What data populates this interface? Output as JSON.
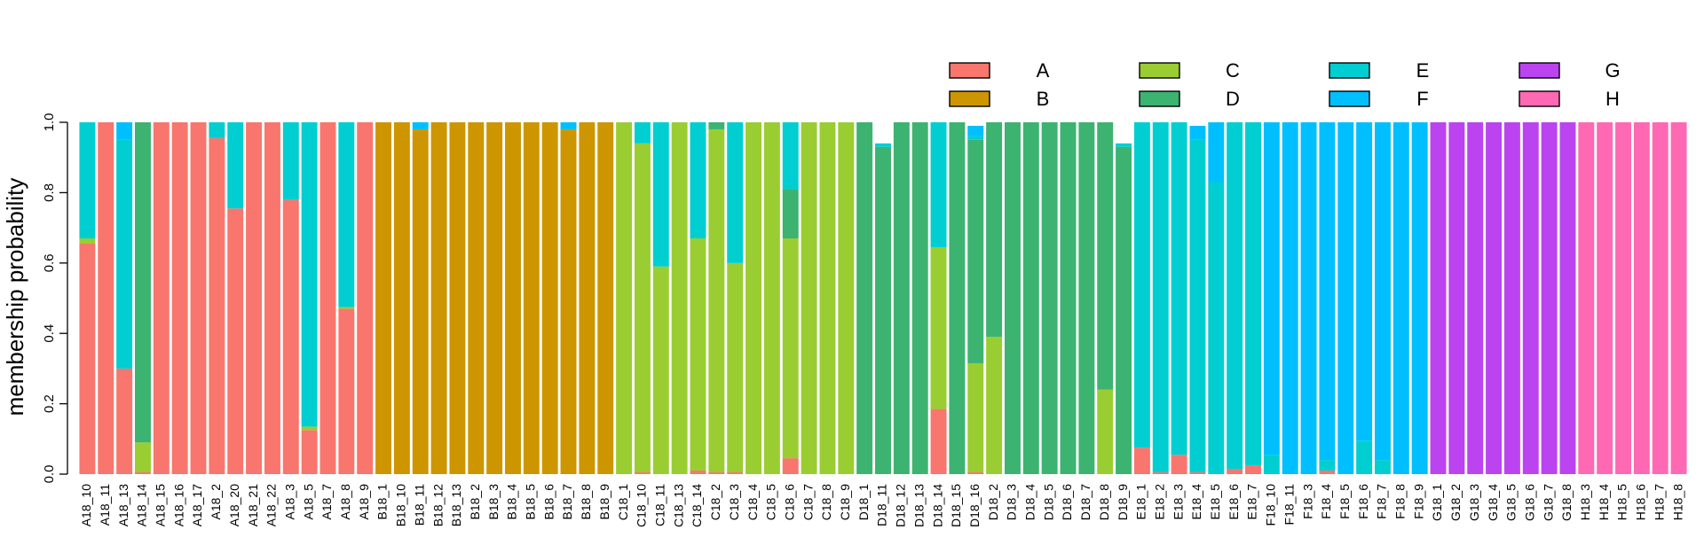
{
  "chart_data": {
    "type": "bar",
    "stacked": true,
    "title": "",
    "xlabel": "",
    "ylabel": "membership probability",
    "ylim": [
      0,
      1
    ],
    "yticks": [
      "0.0",
      "0.2",
      "0.4",
      "0.6",
      "0.8",
      "1.0"
    ],
    "yticks_values": [
      0,
      0.2,
      0.4,
      0.6,
      0.8,
      1.0
    ],
    "legend": {
      "placement": "top-right",
      "entries": [
        {
          "label": "A",
          "color": "#F8766D"
        },
        {
          "label": "B",
          "color": "#CD9600"
        },
        {
          "label": "C",
          "color": "#9ACD32"
        },
        {
          "label": "D",
          "color": "#3CB371"
        },
        {
          "label": "E",
          "color": "#00CED1"
        },
        {
          "label": "F",
          "color": "#00BFFF"
        },
        {
          "label": "G",
          "color": "#BB44F0"
        },
        {
          "label": "H",
          "color": "#FF69B4"
        }
      ]
    },
    "series_names": [
      "A",
      "B",
      "C",
      "D",
      "E",
      "F",
      "G",
      "H"
    ],
    "categories": [
      "A18_10",
      "A18_11",
      "A18_13",
      "A18_14",
      "A18_15",
      "A18_16",
      "A18_17",
      "A18_2",
      "A18_20",
      "A18_21",
      "A18_22",
      "A18_3",
      "A18_5",
      "A18_7",
      "A18_8",
      "A18_9",
      "B18_1",
      "B18_10",
      "B18_11",
      "B18_12",
      "B18_13",
      "B18_2",
      "B18_3",
      "B18_4",
      "B18_5",
      "B18_6",
      "B18_7",
      "B18_8",
      "B18_9",
      "C18_1",
      "C18_10",
      "C18_11",
      "C18_13",
      "C18_14",
      "C18_2",
      "C18_3",
      "C18_4",
      "C18_5",
      "C18_6",
      "C18_7",
      "C18_8",
      "C18_9",
      "D18_1",
      "D18_11",
      "D18_12",
      "D18_13",
      "D18_14",
      "D18_15",
      "D18_16",
      "D18_2",
      "D18_3",
      "D18_4",
      "D18_5",
      "D18_6",
      "D18_7",
      "D18_8",
      "D18_9",
      "E18_1",
      "E18_2",
      "E18_3",
      "E18_4",
      "E18_5",
      "E18_6",
      "E18_7",
      "F18_10",
      "F18_11",
      "F18_3",
      "F18_4",
      "F18_5",
      "F18_6",
      "F18_7",
      "F18_8",
      "F18_9",
      "G18_1",
      "G18_2",
      "G18_3",
      "G18_4",
      "G18_5",
      "G18_6",
      "G18_7",
      "G18_8",
      "H18_3",
      "H18_4",
      "H18_5",
      "H18_6",
      "H18_7",
      "H18_8"
    ],
    "bars": [
      [
        0.655,
        0,
        0.015,
        0,
        0.33,
        0,
        0,
        0
      ],
      [
        1,
        0,
        0,
        0,
        0,
        0,
        0,
        0
      ],
      [
        0.3,
        0,
        0,
        0,
        0.65,
        0.05,
        0,
        0
      ],
      [
        0.005,
        0,
        0.085,
        0.91,
        0,
        0,
        0,
        0
      ],
      [
        1,
        0,
        0,
        0,
        0,
        0,
        0,
        0
      ],
      [
        1,
        0,
        0,
        0,
        0,
        0,
        0,
        0
      ],
      [
        1,
        0,
        0,
        0,
        0,
        0,
        0,
        0
      ],
      [
        0.955,
        0,
        0,
        0,
        0.045,
        0,
        0,
        0
      ],
      [
        0.755,
        0,
        0,
        0,
        0.245,
        0,
        0,
        0
      ],
      [
        1,
        0,
        0,
        0,
        0,
        0,
        0,
        0
      ],
      [
        1,
        0,
        0,
        0,
        0,
        0,
        0,
        0
      ],
      [
        0.78,
        0,
        0,
        0,
        0.22,
        0,
        0,
        0
      ],
      [
        0.125,
        0,
        0.01,
        0,
        0.865,
        0,
        0,
        0
      ],
      [
        1,
        0,
        0,
        0,
        0,
        0,
        0,
        0
      ],
      [
        0.47,
        0,
        0.005,
        0,
        0.525,
        0,
        0,
        0
      ],
      [
        1,
        0,
        0,
        0,
        0,
        0,
        0,
        0
      ],
      [
        0,
        1,
        0,
        0,
        0,
        0,
        0,
        0
      ],
      [
        0,
        1,
        0,
        0,
        0,
        0,
        0,
        0
      ],
      [
        0,
        0.98,
        0,
        0,
        0,
        0.02,
        0,
        0
      ],
      [
        0,
        1,
        0,
        0,
        0,
        0,
        0,
        0
      ],
      [
        0,
        1,
        0,
        0,
        0,
        0,
        0,
        0
      ],
      [
        0,
        1,
        0,
        0,
        0,
        0,
        0,
        0
      ],
      [
        0,
        1,
        0,
        0,
        0,
        0,
        0,
        0
      ],
      [
        0,
        1,
        0,
        0,
        0,
        0,
        0,
        0
      ],
      [
        0,
        1,
        0,
        0,
        0,
        0,
        0,
        0
      ],
      [
        0,
        1,
        0,
        0,
        0,
        0,
        0,
        0
      ],
      [
        0,
        0.98,
        0,
        0,
        0,
        0.02,
        0,
        0
      ],
      [
        0,
        1,
        0,
        0,
        0,
        0,
        0,
        0
      ],
      [
        0,
        1,
        0,
        0,
        0,
        0,
        0,
        0
      ],
      [
        0,
        0,
        1,
        0,
        0,
        0,
        0,
        0
      ],
      [
        0.005,
        0,
        0.935,
        0,
        0.06,
        0,
        0,
        0
      ],
      [
        0,
        0,
        0.59,
        0,
        0.41,
        0,
        0,
        0
      ],
      [
        0,
        0,
        1,
        0,
        0,
        0,
        0,
        0
      ],
      [
        0.01,
        0,
        0.66,
        0,
        0.33,
        0,
        0,
        0
      ],
      [
        0.005,
        0,
        0.975,
        0.02,
        0,
        0,
        0,
        0
      ],
      [
        0.005,
        0,
        0.595,
        0,
        0.4,
        0,
        0,
        0
      ],
      [
        0,
        0,
        1,
        0,
        0,
        0,
        0,
        0
      ],
      [
        0,
        0,
        1,
        0,
        0,
        0,
        0,
        0
      ],
      [
        0.045,
        0,
        0.625,
        0.14,
        0.19,
        0,
        0,
        0
      ],
      [
        0,
        0,
        1,
        0,
        0,
        0,
        0,
        0
      ],
      [
        0,
        0,
        1,
        0,
        0,
        0,
        0,
        0
      ],
      [
        0,
        0,
        1,
        0,
        0,
        0,
        0,
        0
      ],
      [
        0,
        0,
        0,
        1,
        0,
        0,
        0,
        0
      ],
      [
        0,
        0,
        0,
        0.93,
        0.01,
        0,
        0,
        0
      ],
      [
        0,
        0,
        0,
        1,
        0,
        0,
        0,
        0
      ],
      [
        0,
        0,
        0,
        1,
        0,
        0,
        0,
        0
      ],
      [
        0.185,
        0,
        0.46,
        0,
        0.355,
        0,
        0,
        0
      ],
      [
        0,
        0,
        0,
        1,
        0,
        0,
        0,
        0
      ],
      [
        0.005,
        0,
        0.31,
        0.635,
        0.01,
        0.03,
        0,
        0
      ],
      [
        0,
        0,
        0.39,
        0.61,
        0,
        0,
        0,
        0
      ],
      [
        0,
        0,
        0,
        1,
        0,
        0,
        0,
        0
      ],
      [
        0,
        0,
        0,
        1,
        0,
        0,
        0,
        0
      ],
      [
        0,
        0,
        0,
        1,
        0,
        0,
        0,
        0
      ],
      [
        0,
        0,
        0,
        1,
        0,
        0,
        0,
        0
      ],
      [
        0,
        0,
        0,
        1,
        0,
        0,
        0,
        0
      ],
      [
        0,
        0,
        0.24,
        0.76,
        0,
        0,
        0,
        0
      ],
      [
        0,
        0,
        0,
        0.93,
        0.01,
        0,
        0,
        0
      ],
      [
        0.075,
        0,
        0,
        0,
        0.925,
        0,
        0,
        0
      ],
      [
        0.005,
        0,
        0,
        0,
        0.995,
        0,
        0,
        0
      ],
      [
        0.055,
        0,
        0,
        0,
        0.945,
        0,
        0,
        0
      ],
      [
        0.005,
        0,
        0,
        0,
        0.945,
        0.04,
        0,
        0
      ],
      [
        0,
        0,
        0,
        0,
        0.83,
        0.17,
        0,
        0
      ],
      [
        0.015,
        0,
        0,
        0,
        0.985,
        0,
        0,
        0
      ],
      [
        0.025,
        0,
        0,
        0,
        0.975,
        0,
        0,
        0
      ],
      [
        0,
        0,
        0,
        0,
        0.055,
        0.945,
        0,
        0
      ],
      [
        0,
        0,
        0,
        0,
        0,
        1,
        0,
        0
      ],
      [
        0,
        0,
        0,
        0,
        0,
        1,
        0,
        0
      ],
      [
        0.01,
        0,
        0,
        0,
        0.03,
        0.96,
        0,
        0
      ],
      [
        0,
        0,
        0,
        0,
        0,
        1,
        0,
        0
      ],
      [
        0,
        0,
        0,
        0,
        0.095,
        0.905,
        0,
        0
      ],
      [
        0,
        0,
        0,
        0,
        0.04,
        0.96,
        0,
        0
      ],
      [
        0,
        0,
        0,
        0,
        0,
        1,
        0,
        0
      ],
      [
        0,
        0,
        0,
        0,
        0,
        1,
        0,
        0
      ],
      [
        0,
        0,
        0,
        0,
        0,
        0,
        1,
        0
      ],
      [
        0,
        0,
        0,
        0,
        0,
        0,
        1,
        0
      ],
      [
        0,
        0,
        0,
        0,
        0,
        0,
        1,
        0
      ],
      [
        0,
        0,
        0,
        0,
        0,
        0,
        1,
        0
      ],
      [
        0,
        0,
        0,
        0,
        0,
        0,
        1,
        0
      ],
      [
        0,
        0,
        0,
        0,
        0,
        0,
        1,
        0
      ],
      [
        0,
        0,
        0,
        0,
        0,
        0,
        1,
        0
      ],
      [
        0,
        0,
        0,
        0,
        0,
        0,
        1,
        0
      ],
      [
        0,
        0,
        0,
        0,
        0,
        0,
        0,
        1
      ],
      [
        0,
        0,
        0,
        0,
        0,
        0,
        0,
        1
      ],
      [
        0,
        0,
        0,
        0,
        0,
        0,
        0,
        1
      ],
      [
        0,
        0,
        0,
        0,
        0,
        0,
        0,
        1
      ],
      [
        0,
        0,
        0,
        0,
        0,
        0,
        0,
        1
      ],
      [
        0,
        0,
        0,
        0,
        0,
        0,
        0,
        1
      ]
    ]
  }
}
